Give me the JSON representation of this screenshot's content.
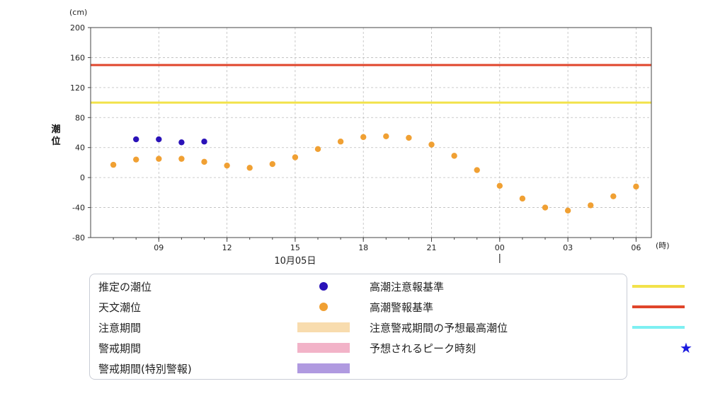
{
  "chart_data": {
    "type": "scatter",
    "y_unit": "(cm)",
    "ylabel": "潮位",
    "x_unit": "(時)",
    "date_label": "10月05日",
    "ylim": [
      -80,
      200
    ],
    "y_ticks": [
      "200",
      "160",
      "120",
      "80",
      "40",
      "0",
      "-40",
      "-80"
    ],
    "x_ticks": [
      {
        "hour": 9,
        "label": "09"
      },
      {
        "hour": 12,
        "label": "12"
      },
      {
        "hour": 15,
        "label": "15"
      },
      {
        "hour": 18,
        "label": "18"
      },
      {
        "hour": 21,
        "label": "21"
      },
      {
        "hour": 24,
        "label": "00"
      },
      {
        "hour": 27,
        "label": "03"
      },
      {
        "hour": 30,
        "label": "06"
      }
    ],
    "grid": true,
    "thresholds": [
      {
        "name": "高潮警報基準",
        "value": 150,
        "color": "#e0452b"
      },
      {
        "name": "高潮注意報基準",
        "value": 100,
        "color": "#f2e24a"
      }
    ],
    "series": [
      {
        "name": "推定の潮位",
        "color": "#2a12b8",
        "points": [
          {
            "hour": 8,
            "value": 51
          },
          {
            "hour": 9,
            "value": 51
          },
          {
            "hour": 10,
            "value": 47
          },
          {
            "hour": 11,
            "value": 48
          }
        ]
      },
      {
        "name": "天文潮位",
        "color": "#f0a033",
        "points": [
          {
            "hour": 7,
            "value": 17
          },
          {
            "hour": 8,
            "value": 24
          },
          {
            "hour": 9,
            "value": 25
          },
          {
            "hour": 10,
            "value": 25
          },
          {
            "hour": 11,
            "value": 21
          },
          {
            "hour": 12,
            "value": 16
          },
          {
            "hour": 13,
            "value": 13
          },
          {
            "hour": 14,
            "value": 18
          },
          {
            "hour": 15,
            "value": 27
          },
          {
            "hour": 16,
            "value": 38
          },
          {
            "hour": 17,
            "value": 48
          },
          {
            "hour": 18,
            "value": 54
          },
          {
            "hour": 19,
            "value": 55
          },
          {
            "hour": 20,
            "value": 53
          },
          {
            "hour": 21,
            "value": 44
          },
          {
            "hour": 22,
            "value": 29
          },
          {
            "hour": 23,
            "value": 10
          },
          {
            "hour": 24,
            "value": -11
          },
          {
            "hour": 25,
            "value": -28
          },
          {
            "hour": 26,
            "value": -40
          },
          {
            "hour": 27,
            "value": -44
          },
          {
            "hour": 28,
            "value": -37
          },
          {
            "hour": 29,
            "value": -25
          },
          {
            "hour": 30,
            "value": -12
          }
        ]
      }
    ]
  },
  "legend": {
    "items": [
      {
        "label": "推定の潮位",
        "kind": "dot",
        "color": "#2a12b8"
      },
      {
        "label": "天文潮位",
        "kind": "dot",
        "color": "#f0a033"
      },
      {
        "label": "注意期間",
        "kind": "bar",
        "color": "#f8dcae"
      },
      {
        "label": "警戒期間",
        "kind": "bar",
        "color": "#f2b3c8"
      },
      {
        "label": "警戒期間(特別警報)",
        "kind": "bar",
        "color": "#b09ae0"
      },
      {
        "label": "高潮注意報基準",
        "kind": "line",
        "color": "#f2e24a"
      },
      {
        "label": "高潮警報基準",
        "kind": "line",
        "color": "#e0452b"
      },
      {
        "label": "注意警戒期間の予想最高潮位",
        "kind": "line",
        "color": "#7df0f2"
      },
      {
        "label": "予想されるピーク時刻",
        "kind": "star",
        "color": "#1a1adf",
        "symbol": "★"
      }
    ]
  }
}
